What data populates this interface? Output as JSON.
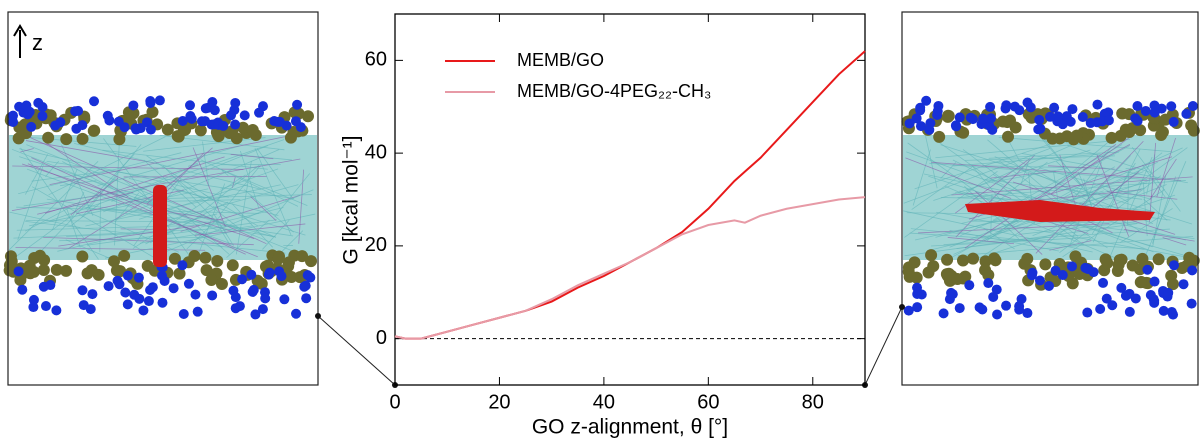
{
  "chart_data": {
    "type": "line",
    "x_label": "GO z-alignment, θ [°]",
    "y_label": "G [kcal mol⁻¹]",
    "annotation": "z",
    "x": [
      0,
      2,
      5,
      10,
      15,
      20,
      25,
      30,
      35,
      40,
      45,
      50,
      55,
      60,
      65,
      67,
      70,
      75,
      80,
      85,
      90
    ],
    "series": [
      {
        "name": "MEMB/GO",
        "color": "#e8191a",
        "values": [
          0.5,
          0,
          0,
          1.5,
          3,
          4.5,
          6,
          8,
          11,
          13.5,
          16.5,
          19.5,
          23,
          28,
          34,
          36,
          39,
          45,
          51,
          57,
          62
        ]
      },
      {
        "name": "MEMB/GO-4PEG₂₂-CH₃",
        "color": "#e79aa6",
        "values": [
          0.5,
          0,
          0,
          1.5,
          3,
          4.5,
          6,
          8.5,
          11.5,
          14,
          16.5,
          19.5,
          22.5,
          24.5,
          25.5,
          25,
          26.5,
          28,
          29,
          30,
          30.5
        ]
      }
    ],
    "xlim": [
      0,
      90
    ],
    "ylim": [
      -10,
      70
    ],
    "xticks": [
      0,
      20,
      40,
      60,
      80
    ],
    "yticks": [
      0,
      20,
      40,
      60
    ],
    "hline": 0,
    "legend": "upper-left"
  }
}
